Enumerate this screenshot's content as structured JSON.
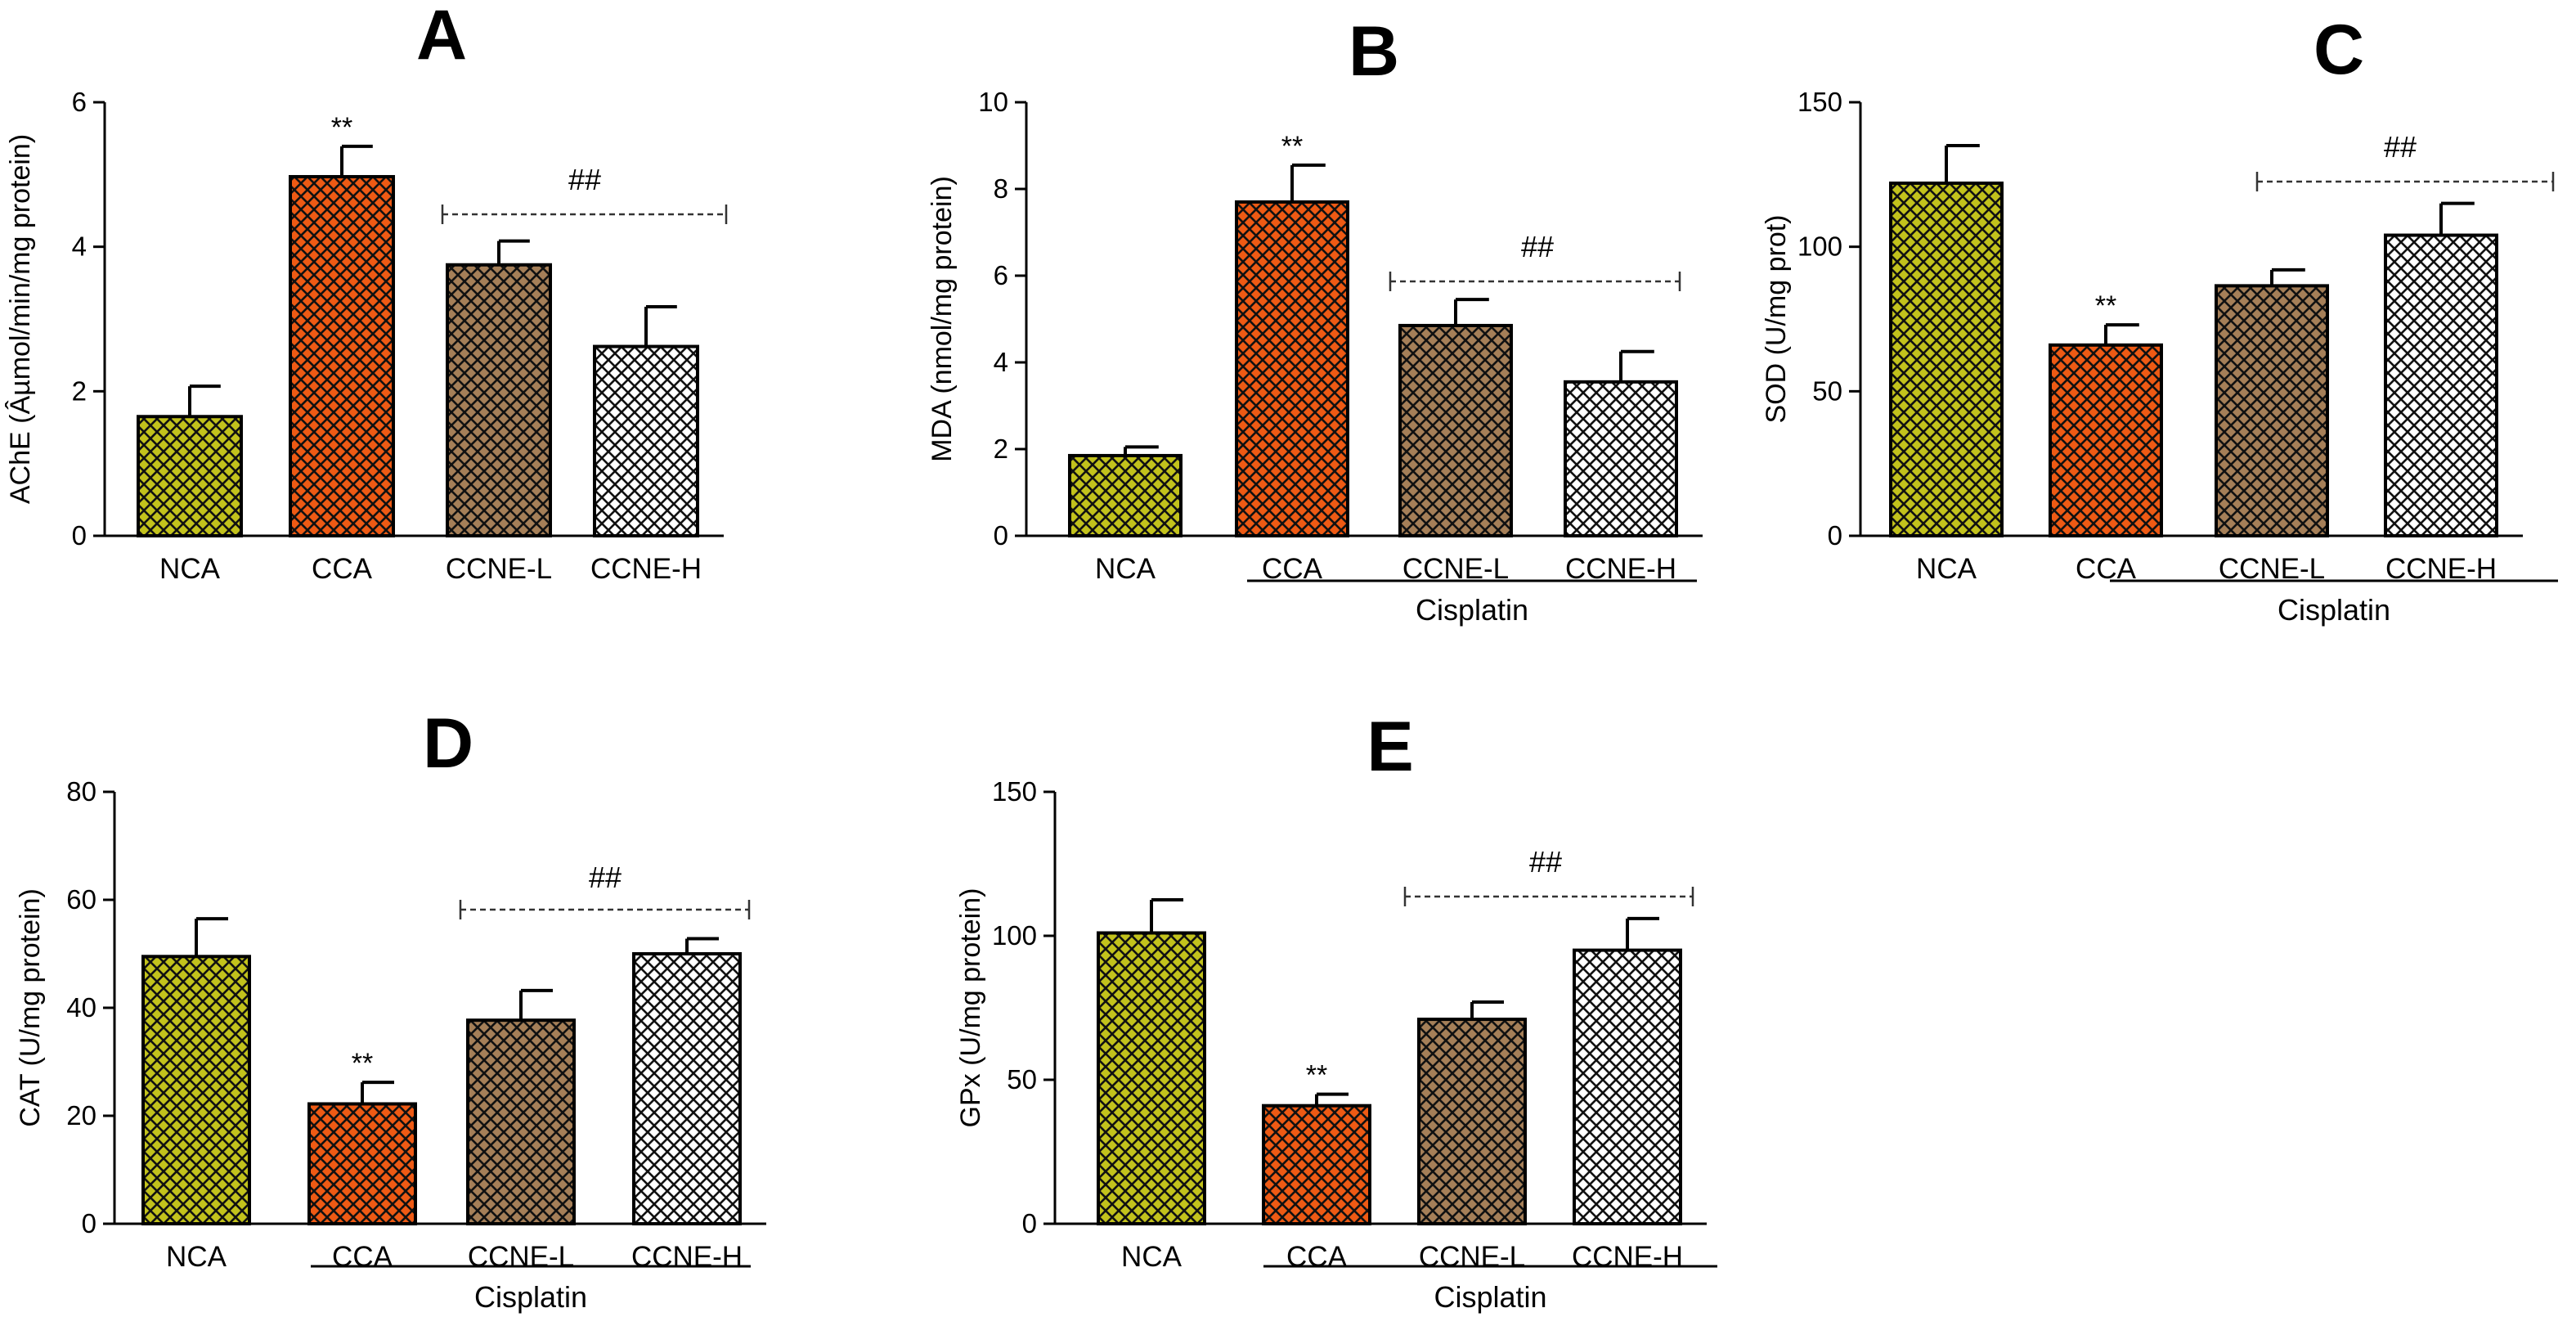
{
  "colors": {
    "NCA": "#c2c21c",
    "CCA": "#ee5a14",
    "CCNE-L": "#a57f58",
    "CCNE-H": "#ffffff"
  },
  "chart_data": [
    {
      "type": "bar",
      "panel": "A",
      "ylabel": "AChE (Âµmol/min/mg protein)",
      "categories": [
        "NCA",
        "CCA",
        "CCNE-L",
        "CCNE-H"
      ],
      "values": [
        1.65,
        4.97,
        3.75,
        2.62
      ],
      "errors": [
        0.42,
        0.42,
        0.33,
        0.55
      ],
      "yticks": [
        0,
        2,
        4,
        6
      ],
      "ylim": [
        0,
        6
      ],
      "group_label": "",
      "marker_cca": "**",
      "hash_label": "##"
    },
    {
      "type": "bar",
      "panel": "B",
      "ylabel": "MDA (nmol/mg protein)",
      "categories": [
        "NCA",
        "CCA",
        "CCNE-L",
        "CCNE-H"
      ],
      "values": [
        1.85,
        7.7,
        4.85,
        3.55
      ],
      "errors": [
        0.2,
        0.85,
        0.6,
        0.7
      ],
      "yticks": [
        0,
        2,
        4,
        6,
        8,
        10
      ],
      "ylim": [
        0,
        10
      ],
      "group_label": "Cisplatin",
      "marker_cca": "**",
      "hash_label": "##"
    },
    {
      "type": "bar",
      "panel": "C",
      "ylabel": "SOD (U/mg prot)",
      "categories": [
        "NCA",
        "CCA",
        "CCNE-L",
        "CCNE-H"
      ],
      "values": [
        122,
        66,
        86.5,
        104
      ],
      "errors": [
        13,
        7,
        5.5,
        11
      ],
      "yticks": [
        0,
        50,
        100,
        150
      ],
      "ylim": [
        0,
        150
      ],
      "group_label": "Cisplatin",
      "marker_cca": "**",
      "hash_label": "##"
    },
    {
      "type": "bar",
      "panel": "D",
      "ylabel": "CAT (U/mg protein)",
      "categories": [
        "NCA",
        "CCA",
        "CCNE-L",
        "CCNE-H"
      ],
      "values": [
        49.5,
        22.2,
        37.7,
        50
      ],
      "errors": [
        7,
        4,
        5.5,
        2.8
      ],
      "yticks": [
        0,
        20,
        40,
        60,
        80
      ],
      "ylim": [
        0,
        80
      ],
      "group_label": "Cisplatin",
      "marker_cca": "**",
      "hash_label": "##"
    },
    {
      "type": "bar",
      "panel": "E",
      "ylabel": "GPx (U/mg protein)",
      "categories": [
        "NCA",
        "CCA",
        "CCNE-L",
        "CCNE-H"
      ],
      "values": [
        101,
        41,
        71,
        95
      ],
      "errors": [
        11.5,
        4,
        6,
        11
      ],
      "yticks": [
        0,
        50,
        100,
        150
      ],
      "ylim": [
        0,
        150
      ],
      "group_label": "Cisplatin",
      "marker_cca": "**",
      "hash_label": "##"
    }
  ]
}
